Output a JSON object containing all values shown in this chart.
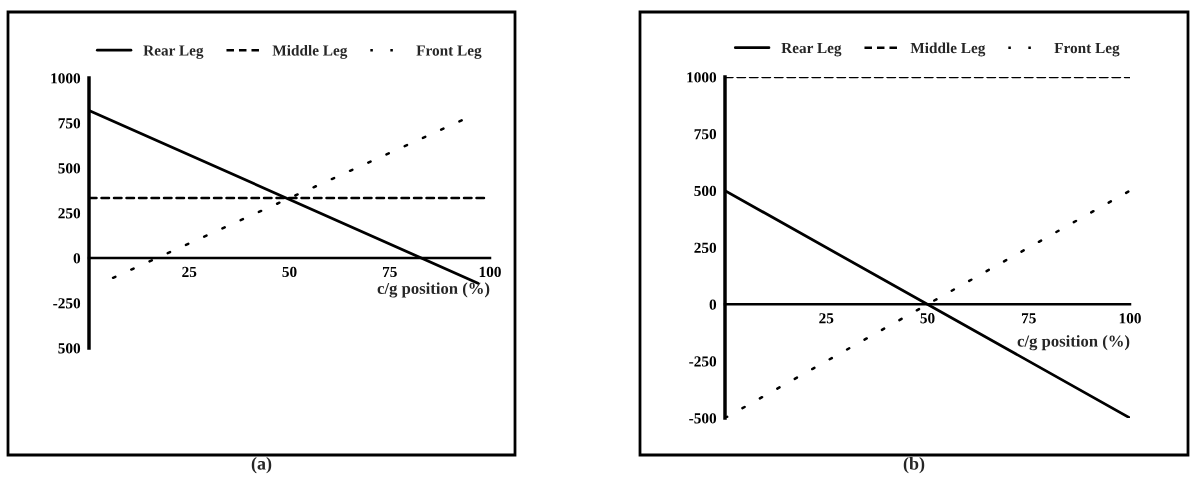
{
  "chart_data": [
    {
      "type": "line",
      "title": "(a)",
      "xlabel": "c/g position (%)",
      "xlim": [
        0,
        100
      ],
      "ylim": [
        -500,
        1000
      ],
      "xticks": [
        {
          "value": 0,
          "label": null
        },
        25,
        50,
        75,
        100
      ],
      "yticks": [
        {
          "value": -500,
          "label": "500"
        },
        -250,
        0,
        250,
        500,
        750,
        1000
      ],
      "legend": "top",
      "grid": false,
      "series": [
        {
          "name": "Rear Leg",
          "color": "#000000",
          "line_style": "solid",
          "x": [
            0,
            97
          ],
          "values": [
            820,
            -140
          ]
        },
        {
          "name": "Middle Leg",
          "color": "#000000",
          "line_style": "dashed",
          "x": [
            0,
            99
          ],
          "values": [
            333,
            333
          ]
        },
        {
          "name": "Front Leg",
          "color": "#000000",
          "line_style": "dotted",
          "x": [
            6,
            94
          ],
          "values": [
            -110,
            775
          ]
        }
      ]
    },
    {
      "type": "line",
      "title": "(b)",
      "xlabel": "c/g position (%)",
      "xlim": [
        0,
        100
      ],
      "ylim": [
        -500,
        1000
      ],
      "xticks": [
        {
          "value": 0,
          "label": null
        },
        25,
        50,
        75,
        100
      ],
      "yticks": [
        -500,
        -250,
        0,
        250,
        500,
        750,
        1000
      ],
      "legend": "top",
      "grid": false,
      "series": [
        {
          "name": "Rear Leg",
          "color": "#000000",
          "line_style": "solid",
          "x": [
            0,
            100
          ],
          "values": [
            500,
            -500
          ]
        },
        {
          "name": "Middle Leg",
          "color": "#000000",
          "line_style": "dashed",
          "x": [
            0,
            100
          ],
          "values": [
            1000,
            1000
          ]
        },
        {
          "name": "Front Leg",
          "color": "#000000",
          "line_style": "dotted",
          "x": [
            0,
            100
          ],
          "values": [
            -500,
            500
          ]
        }
      ]
    }
  ]
}
